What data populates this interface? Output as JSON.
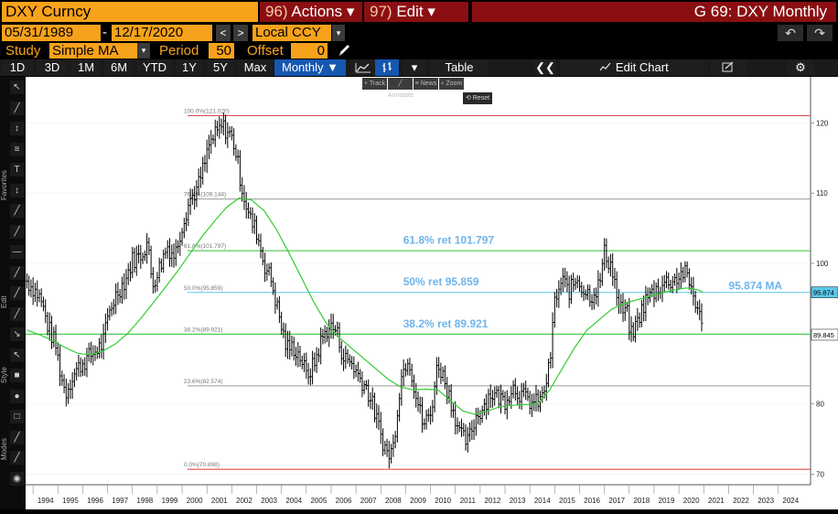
{
  "header": {
    "ticker": "DXY Curncy",
    "actions_num": "96)",
    "actions_label": "Actions",
    "edit_num": "97)",
    "edit_label": "Edit",
    "dropdown_glyph": "▾",
    "window_title": "G 69: DXY Monthly"
  },
  "range": {
    "start_date": "05/31/1989",
    "separator": "-",
    "end_date": "12/17/2020",
    "prev_glyph": "<",
    "next_glyph": ">",
    "currency": "Local CCY",
    "undo_glyph": "↶",
    "redo_glyph": "↷"
  },
  "study": {
    "study_label": "Study",
    "study_value": "Simple MA",
    "period_label": "Period",
    "period_value": "50",
    "offset_label": "Offset",
    "offset_value": "0"
  },
  "toolbar": {
    "periods": [
      "1D",
      "3D",
      "1M",
      "6M",
      "YTD",
      "1Y",
      "5Y",
      "Max"
    ],
    "frequency": "Monthly ▼",
    "table_label": "Table",
    "collapse_glyph": "❮❮",
    "edit_chart_label": "Edit Chart",
    "settings_glyph": "⚙"
  },
  "popup": {
    "items": [
      "+ Track",
      "╱ Annotate",
      "≡ News",
      "⌕ Zoom"
    ],
    "reset_label": "⟲ Reset"
  },
  "side_panel": {
    "tools": [
      "↖",
      "╱",
      "↕",
      "≡",
      "T",
      "↕",
      "╱",
      "╱",
      "—",
      "╱",
      "╱",
      "╱",
      "↘",
      "↖",
      "■",
      "●",
      "□",
      "╱",
      "╱",
      "◉"
    ],
    "section_labels": [
      "Favorites",
      "Edit",
      "Style",
      "Modes"
    ]
  },
  "colors": {
    "orange": "#f7a21b",
    "menu_red": "#8b0f12",
    "price_line": "#ffffff",
    "ma_line": "#33cc33",
    "fib_line_100": "#d83838",
    "fib_line_0": "#d83838",
    "fib_line_50": "#59c7e8",
    "fib_line_382": "#2fc22f",
    "fib_line_618": "#2fc22f",
    "fib_line_other": "#9a9a9a",
    "annotation_text": "#6fb4ea",
    "last_price_tag": "#ffffff",
    "ma_tag": "#59c7e8"
  },
  "chart_data": {
    "type": "line",
    "title": "",
    "xlabel": "",
    "ylabel": "",
    "x_range": [
      1993.7,
      2025.3
    ],
    "ylim": [
      68.5,
      125.5
    ],
    "grid": true,
    "x_ticks": [
      "1994",
      "1995",
      "1996",
      "1997",
      "1998",
      "1999",
      "2000",
      "2001",
      "2002",
      "2003",
      "2004",
      "2005",
      "2006",
      "2007",
      "2008",
      "2009",
      "2010",
      "2011",
      "2012",
      "2013",
      "2014",
      "2015",
      "2016",
      "2017",
      "2018",
      "2019",
      "2020",
      "2021",
      "2022",
      "2023",
      "2024"
    ],
    "y_ticks": [
      70,
      80,
      90,
      100,
      110,
      120
    ],
    "fib_levels": [
      {
        "label": "100.0%(121.020)",
        "value": 121.02
      },
      {
        "label": "76.4%(109.144)",
        "value": 109.144
      },
      {
        "label": "61.8%(101.797)",
        "value": 101.797
      },
      {
        "label": "50.0%(95.859)",
        "value": 95.859
      },
      {
        "label": "38.2%(89.921)",
        "value": 89.921
      },
      {
        "label": "23.6%(82.574)",
        "value": 82.574
      },
      {
        "label": "0.0%(70.698)",
        "value": 70.698
      }
    ],
    "annotations": [
      {
        "text": "61.8% ret 101.797",
        "x": 2008.9,
        "y": 102.8
      },
      {
        "text": "50% ret 95.859",
        "x": 2008.9,
        "y": 96.9
      },
      {
        "text": "38.2% ret 89.921",
        "x": 2008.9,
        "y": 90.9
      },
      {
        "text": "95.874 MA",
        "x": 2022.0,
        "y": 96.3
      }
    ],
    "last_price": {
      "label": "89.845",
      "value": 89.845
    },
    "ma_value": {
      "label": "95.874",
      "value": 95.874
    },
    "series": [
      {
        "name": "",
        "style": "ohlc-bars",
        "x": [
          1993.75,
          1994.0,
          1994.3,
          1994.6,
          1994.9,
          1995.1,
          1995.3,
          1995.6,
          1995.9,
          1996.2,
          1996.5,
          1996.8,
          1997.1,
          1997.4,
          1997.7,
          1998.0,
          1998.3,
          1998.6,
          1998.8,
          1999.1,
          1999.4,
          1999.7,
          2000.0,
          2000.3,
          2000.6,
          2000.9,
          2001.1,
          2001.4,
          2001.6,
          2001.9,
          2002.1,
          2002.4,
          2002.7,
          2003.0,
          2003.3,
          2003.6,
          2003.9,
          2004.2,
          2004.5,
          2004.8,
          2005.0,
          2005.3,
          2005.6,
          2005.9,
          2006.2,
          2006.5,
          2006.8,
          2007.1,
          2007.4,
          2007.7,
          2008.0,
          2008.3,
          2008.5,
          2008.8,
          2009.1,
          2009.4,
          2009.7,
          2010.0,
          2010.3,
          2010.6,
          2010.9,
          2011.2,
          2011.5,
          2011.8,
          2012.1,
          2012.4,
          2012.7,
          2013.0,
          2013.3,
          2013.6,
          2013.9,
          2014.2,
          2014.5,
          2014.8,
          2015.0,
          2015.3,
          2015.6,
          2015.9,
          2016.2,
          2016.5,
          2016.8,
          2017.0,
          2017.3,
          2017.6,
          2017.9,
          2018.1,
          2018.4,
          2018.7,
          2019.0,
          2019.3,
          2019.6,
          2019.9,
          2020.2,
          2020.5,
          2020.8,
          2020.96
        ],
        "y": [
          97.5,
          96.5,
          95.0,
          91.0,
          88.5,
          84.5,
          81.5,
          84.0,
          85.5,
          86.5,
          87.5,
          88.5,
          93.5,
          96.0,
          97.5,
          100.5,
          101.0,
          103.0,
          97.0,
          99.5,
          102.5,
          101.0,
          105.5,
          109.0,
          110.5,
          114.0,
          117.0,
          118.5,
          119.5,
          118.5,
          117.0,
          111.0,
          106.5,
          104.5,
          100.0,
          97.5,
          92.5,
          88.0,
          88.0,
          86.5,
          84.0,
          85.5,
          89.0,
          91.0,
          90.5,
          86.5,
          86.0,
          84.0,
          82.5,
          79.5,
          75.5,
          72.5,
          74.0,
          83.5,
          87.0,
          81.5,
          77.0,
          78.5,
          86.0,
          83.0,
          79.5,
          75.5,
          74.5,
          78.0,
          79.5,
          81.5,
          81.0,
          80.5,
          82.5,
          81.5,
          80.5,
          80.0,
          80.8,
          85.5,
          94.5,
          97.5,
          96.0,
          98.0,
          96.0,
          95.5,
          97.0,
          101.5,
          99.5,
          93.5,
          93.0,
          89.5,
          92.5,
          95.0,
          96.0,
          97.0,
          97.5,
          97.8,
          98.8,
          96.5,
          93.0,
          89.845
        ],
        "range_halfwidth": 1.6
      },
      {
        "name": "",
        "style": "line",
        "x": [
          1993.75,
          1994.3,
          1994.8,
          1995.3,
          1995.8,
          1996.3,
          1996.8,
          1997.3,
          1997.8,
          1998.3,
          1998.8,
          1999.3,
          1999.8,
          2000.3,
          2000.8,
          2001.3,
          2001.8,
          2002.3,
          2002.8,
          2003.3,
          2003.8,
          2004.3,
          2004.8,
          2005.3,
          2005.8,
          2006.3,
          2006.8,
          2007.3,
          2007.8,
          2008.3,
          2008.8,
          2009.3,
          2009.8,
          2010.3,
          2010.8,
          2011.3,
          2011.8,
          2012.3,
          2012.8,
          2013.3,
          2013.8,
          2014.3,
          2014.8,
          2015.3,
          2015.8,
          2016.3,
          2016.8,
          2017.3,
          2017.8,
          2018.3,
          2018.8,
          2019.3,
          2019.8,
          2020.3,
          2020.8,
          2020.96
        ],
        "y": [
          90.5,
          89.8,
          89.0,
          88.0,
          87.2,
          87.0,
          87.5,
          88.5,
          90.0,
          92.0,
          94.2,
          96.5,
          98.8,
          101.3,
          103.8,
          106.0,
          108.0,
          109.3,
          109.0,
          107.5,
          104.8,
          101.5,
          98.0,
          94.5,
          91.5,
          89.5,
          88.0,
          86.5,
          85.0,
          83.5,
          82.4,
          82.0,
          82.1,
          82.0,
          80.5,
          79.0,
          78.5,
          79.0,
          79.6,
          79.8,
          79.9,
          80.0,
          82.0,
          85.0,
          88.0,
          90.5,
          92.0,
          93.5,
          94.3,
          94.8,
          95.3,
          95.8,
          96.2,
          96.5,
          96.2,
          95.874
        ]
      }
    ]
  }
}
